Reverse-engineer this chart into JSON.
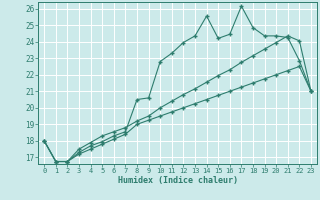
{
  "title": "",
  "xlabel": "Humidex (Indice chaleur)",
  "bg_color": "#cceaea",
  "grid_color": "#ffffff",
  "line_color": "#2e7d6e",
  "xlim": [
    -0.5,
    23.5
  ],
  "ylim": [
    16.6,
    26.4
  ],
  "yticks": [
    17,
    18,
    19,
    20,
    21,
    22,
    23,
    24,
    25,
    26
  ],
  "xticks": [
    0,
    1,
    2,
    3,
    4,
    5,
    6,
    7,
    8,
    9,
    10,
    11,
    12,
    13,
    14,
    15,
    16,
    17,
    18,
    19,
    20,
    21,
    22,
    23
  ],
  "line1_x": [
    0,
    1,
    2,
    3,
    4,
    5,
    6,
    7,
    8,
    9,
    10,
    11,
    12,
    13,
    14,
    15,
    16,
    17,
    18,
    19,
    20,
    21,
    22,
    23
  ],
  "line1_y": [
    18.0,
    16.75,
    16.75,
    17.3,
    17.7,
    17.95,
    18.3,
    18.55,
    20.5,
    20.6,
    22.8,
    23.3,
    23.95,
    24.35,
    25.55,
    24.2,
    24.45,
    26.15,
    24.85,
    24.35,
    24.35,
    24.25,
    22.85,
    21.0
  ],
  "line2_x": [
    0,
    1,
    2,
    3,
    4,
    5,
    6,
    7,
    8,
    9,
    10,
    11,
    12,
    13,
    14,
    15,
    16,
    17,
    18,
    19,
    20,
    21,
    22,
    23
  ],
  "line2_y": [
    18.0,
    16.75,
    16.75,
    17.5,
    17.9,
    18.3,
    18.55,
    18.8,
    19.2,
    19.5,
    20.0,
    20.4,
    20.8,
    21.15,
    21.55,
    21.95,
    22.3,
    22.75,
    23.15,
    23.55,
    23.95,
    24.35,
    24.05,
    21.0
  ],
  "line3_x": [
    0,
    1,
    2,
    3,
    4,
    5,
    6,
    7,
    8,
    9,
    10,
    11,
    12,
    13,
    14,
    15,
    16,
    17,
    18,
    19,
    20,
    21,
    22,
    23
  ],
  "line3_y": [
    18.0,
    16.75,
    16.75,
    17.2,
    17.5,
    17.8,
    18.1,
    18.4,
    19.0,
    19.25,
    19.5,
    19.75,
    20.0,
    20.25,
    20.5,
    20.75,
    21.0,
    21.25,
    21.5,
    21.75,
    22.0,
    22.25,
    22.5,
    21.0
  ]
}
